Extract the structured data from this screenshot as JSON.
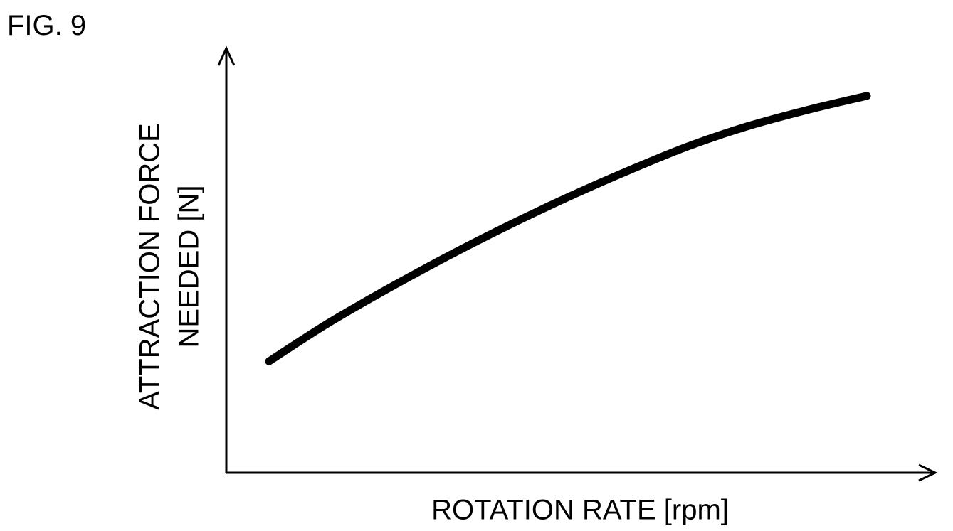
{
  "figure_label": "FIG. 9",
  "colors": {
    "ink": "#000000",
    "background": "#ffffff"
  },
  "chart_data": {
    "type": "line",
    "title": "",
    "xlabel": "ROTATION RATE [rpm]",
    "ylabel_lines": [
      "ATTRACTION FORCE",
      "NEEDED [N]"
    ],
    "xlim": [
      0,
      100
    ],
    "ylim": [
      0,
      100
    ],
    "grid": false,
    "legend": "none",
    "tick_labels": false,
    "series": [
      {
        "x": [
          0,
          10,
          20,
          30,
          40,
          50,
          60,
          70,
          80,
          90,
          100
        ],
        "y": [
          27.5,
          37,
          45.5,
          53.5,
          61,
          68,
          74.5,
          80.5,
          85.5,
          89.5,
          93
        ]
      }
    ]
  }
}
